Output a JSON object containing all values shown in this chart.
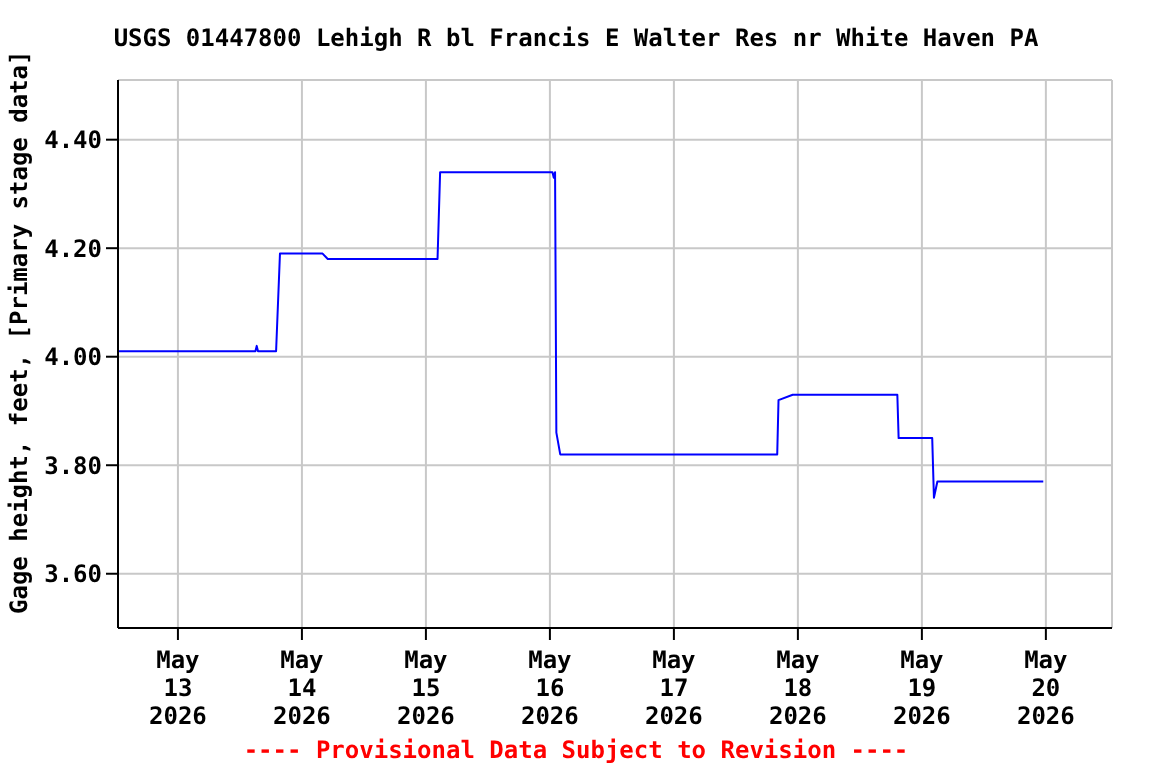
{
  "chart_data": {
    "type": "line",
    "title": "USGS 01447800 Lehigh R bl Francis E Walter Res nr White Haven PA",
    "ylabel": "Gage height, feet, [Primary stage data]",
    "annotations": [
      "---- Provisional Data Subject to Revision ----"
    ],
    "x": [
      "2026-05-12T12:30",
      "2026-05-13T15:00",
      "2026-05-13T15:15",
      "2026-05-13T15:30",
      "2026-05-13T19:00",
      "2026-05-13T19:45",
      "2026-05-14T04:00",
      "2026-05-14T05:00",
      "2026-05-15T02:15",
      "2026-05-15T02:45",
      "2026-05-16T00:30",
      "2026-05-16T00:45",
      "2026-05-16T01:00",
      "2026-05-16T01:15",
      "2026-05-16T02:00",
      "2026-05-17T20:00",
      "2026-05-17T20:15",
      "2026-05-17T23:00",
      "2026-05-18T19:15",
      "2026-05-18T19:30",
      "2026-05-19T02:00",
      "2026-05-19T02:20",
      "2026-05-19T03:00",
      "2026-05-19T23:30"
    ],
    "series": [
      {
        "color": "#0000ff",
        "values": [
          4.01,
          4.01,
          4.02,
          4.01,
          4.01,
          4.19,
          4.19,
          4.18,
          4.18,
          4.34,
          4.34,
          4.33,
          4.34,
          3.86,
          3.82,
          3.82,
          3.92,
          3.93,
          3.93,
          3.85,
          3.85,
          3.74,
          3.77,
          3.77
        ]
      }
    ],
    "xlim": [
      "2026-05-12T12:24",
      "2026-05-20T12:48"
    ],
    "xticks": [
      {
        "value": "2026-05-13",
        "label": "May\n13\n2026"
      },
      {
        "value": "2026-05-14",
        "label": "May\n14\n2026"
      },
      {
        "value": "2026-05-15",
        "label": "May\n15\n2026"
      },
      {
        "value": "2026-05-16",
        "label": "May\n16\n2026"
      },
      {
        "value": "2026-05-17",
        "label": "May\n17\n2026"
      },
      {
        "value": "2026-05-18",
        "label": "May\n18\n2026"
      },
      {
        "value": "2026-05-19",
        "label": "May\n19\n2026"
      },
      {
        "value": "2026-05-20",
        "label": "May\n20\n2026"
      }
    ],
    "ylim": [
      3.5,
      4.51
    ],
    "yticks": [
      {
        "value": 3.6,
        "label": "3.60"
      },
      {
        "value": 3.8,
        "label": "3.80"
      },
      {
        "value": 4.0,
        "label": "4.00"
      },
      {
        "value": 4.2,
        "label": "4.20"
      },
      {
        "value": 4.4,
        "label": "4.40"
      }
    ],
    "grid": true,
    "marker": "none"
  }
}
